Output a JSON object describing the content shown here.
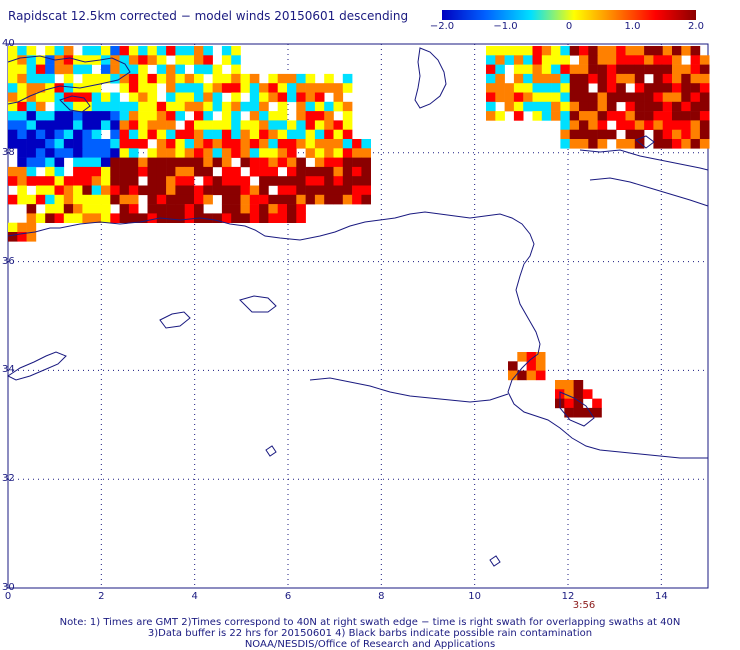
{
  "title": "Rapidscat 12.5km corrected − model winds 20150601 descending",
  "colorbar": {
    "labels": [
      "−2.0",
      "−1.0",
      "0",
      "1.0",
      "2.0"
    ],
    "values": [
      -2.0,
      -1.0,
      0,
      1.0,
      2.0
    ],
    "colors": [
      "#0000c0",
      "#0060ff",
      "#00e0ff",
      "#ffff00",
      "#ff8000",
      "#ff0000",
      "#8b0000"
    ]
  },
  "axes": {
    "x_ticks": [
      "0",
      "2",
      "4",
      "6",
      "8",
      "10",
      "12",
      "14"
    ],
    "x_values": [
      0,
      2,
      4,
      6,
      8,
      10,
      12,
      14
    ],
    "y_ticks": [
      "40",
      "38",
      "36",
      "34",
      "32",
      "30"
    ],
    "y_values": [
      40,
      38,
      36,
      34,
      32,
      30
    ],
    "xlim": [
      0,
      15
    ],
    "ylim": [
      30,
      40
    ],
    "grid": "dotted"
  },
  "time_label": "3:56",
  "notes": [
    "Note: 1) Times are GMT 2)Times correspond to 40N at right swath edge − time is right swath for overlapping swaths at 40N",
    "3)Data buffer is 22 hrs for 20150601 4) Black barbs indicate possible rain contamination",
    "NOAA/NESDIS/Office of Research and Applications"
  ]
}
